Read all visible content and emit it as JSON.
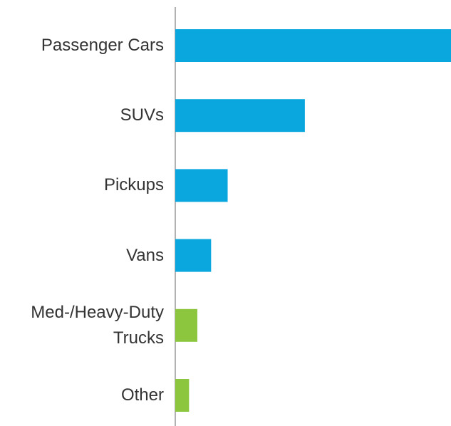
{
  "chart_data": {
    "type": "barh",
    "categories": [
      "Passenger Cars",
      "SUVs",
      "Pickups",
      "Vans",
      "Med-/Heavy-Duty Trucks",
      "Other"
    ],
    "values": [
      100,
      47,
      19,
      13,
      8,
      5
    ],
    "colors": [
      "#0aa7df",
      "#0aa7df",
      "#0aa7df",
      "#0aa7df",
      "#8cc63f",
      "#8cc63f"
    ]
  }
}
